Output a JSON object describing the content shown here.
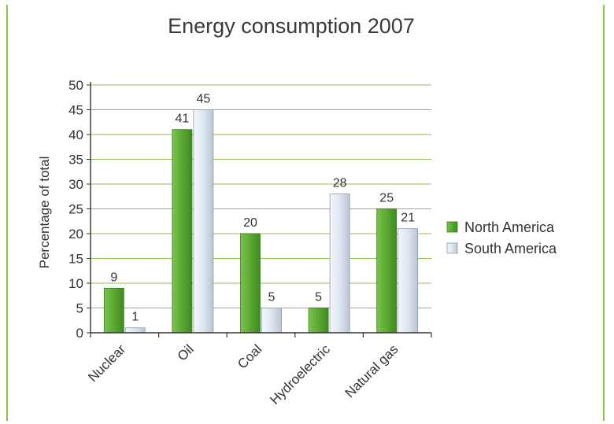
{
  "chart_data": {
    "type": "bar",
    "title": "Energy consumption 2007",
    "xlabel": "",
    "ylabel": "Percentage of total",
    "ylim": [
      0,
      50
    ],
    "yticks": [
      "0",
      "5",
      "10",
      "15",
      "20",
      "25",
      "30",
      "35",
      "40",
      "45",
      "50"
    ],
    "categories": [
      "Nuclear",
      "Oil",
      "Coal",
      "Hydroelectric",
      "Natural gas"
    ],
    "series": [
      {
        "name": "North America",
        "values": [
          9,
          41,
          20,
          5,
          25
        ],
        "labels": [
          "9",
          "41",
          "20",
          "5",
          "25"
        ]
      },
      {
        "name": "South America",
        "values": [
          1,
          45,
          5,
          28,
          21
        ],
        "labels": [
          "1",
          "45",
          "5",
          "28",
          "21"
        ]
      }
    ],
    "grid": true,
    "legend": "right",
    "colors": {
      "North America": "#5aa832",
      "South America": "#dde6f0",
      "grid": "#8cc04f",
      "frame": "#8cc04f"
    }
  }
}
